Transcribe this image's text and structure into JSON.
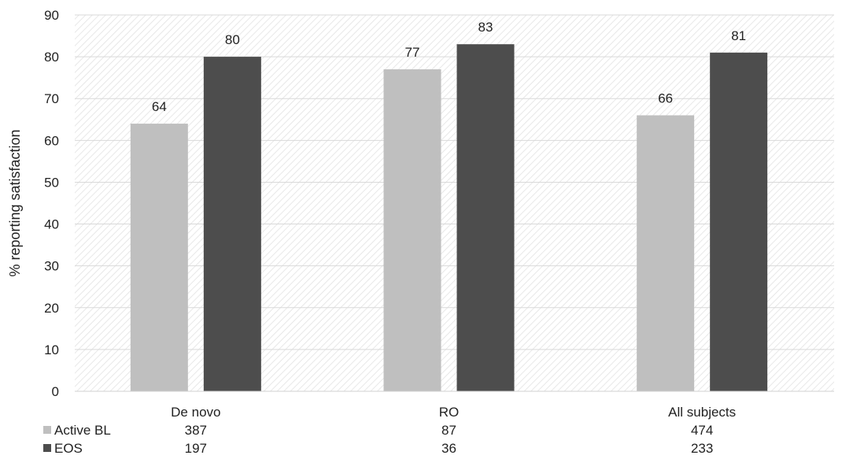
{
  "chart_data": {
    "type": "bar",
    "ylabel": "% reporting satisfaction",
    "ylim": [
      0,
      90
    ],
    "yticks": [
      0,
      10,
      20,
      30,
      40,
      50,
      60,
      70,
      80,
      90
    ],
    "grid": true,
    "categories": [
      "De novo",
      "RO",
      "All subjects"
    ],
    "series": [
      {
        "name": "Active BL",
        "color": "#bfbfbf",
        "values": [
          64,
          77,
          66
        ],
        "labels": [
          "64",
          "77",
          "66"
        ],
        "n": [
          "387",
          "87",
          "474"
        ]
      },
      {
        "name": "EOS",
        "color": "#4d4d4d",
        "values": [
          80,
          83,
          81
        ],
        "labels": [
          "80",
          "83",
          "81"
        ],
        "n": [
          "197",
          "36",
          "233"
        ]
      }
    ],
    "legend": "bottom-left table"
  }
}
